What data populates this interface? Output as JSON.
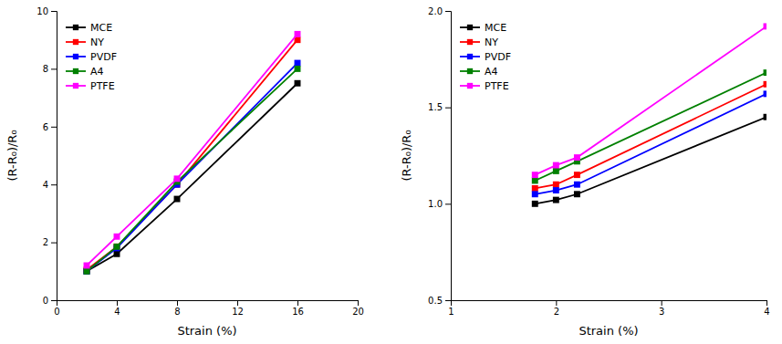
{
  "chart_data": [
    {
      "type": "line",
      "x": [
        2,
        4,
        8,
        16
      ],
      "series": [
        {
          "name": "MCE",
          "color": "#000000",
          "values": [
            1.0,
            1.6,
            3.5,
            7.5
          ]
        },
        {
          "name": "NY",
          "color": "#ff0000",
          "values": [
            1.05,
            1.85,
            4.0,
            9.0
          ]
        },
        {
          "name": "PVDF",
          "color": "#0000ff",
          "values": [
            1.0,
            1.8,
            4.0,
            8.2
          ]
        },
        {
          "name": "A4",
          "color": "#008000",
          "values": [
            1.0,
            1.85,
            4.1,
            8.0
          ]
        },
        {
          "name": "PTFE",
          "color": "#ff00ff",
          "values": [
            1.2,
            2.2,
            4.2,
            9.2
          ]
        }
      ],
      "xlim": [
        0,
        20
      ],
      "ylim": [
        0,
        10
      ],
      "xticks": [
        0,
        4,
        8,
        12,
        16,
        20
      ],
      "yticks": [
        0,
        2,
        4,
        6,
        8,
        10
      ],
      "xlabel": "Strain (%)",
      "ylabel": "(R-R₀)/R₀",
      "marker": "square",
      "legend": "upper-left",
      "grid": false
    },
    {
      "type": "line",
      "x": [
        1.8,
        2.0,
        2.2,
        4.0
      ],
      "series": [
        {
          "name": "MCE",
          "color": "#000000",
          "values": [
            1.0,
            1.02,
            1.05,
            1.45
          ]
        },
        {
          "name": "NY",
          "color": "#ff0000",
          "values": [
            1.08,
            1.1,
            1.15,
            1.62
          ]
        },
        {
          "name": "PVDF",
          "color": "#0000ff",
          "values": [
            1.05,
            1.07,
            1.1,
            1.57
          ]
        },
        {
          "name": "A4",
          "color": "#008000",
          "values": [
            1.12,
            1.17,
            1.22,
            1.68
          ]
        },
        {
          "name": "PTFE",
          "color": "#ff00ff",
          "values": [
            1.15,
            1.2,
            1.24,
            1.92
          ]
        }
      ],
      "xlim": [
        1,
        4
      ],
      "ylim": [
        0.5,
        2.0
      ],
      "xticks": [
        1,
        2,
        3,
        4
      ],
      "yticks": [
        0.5,
        {
          "value": 1.0,
          "label": "1.0"
        },
        1.5,
        {
          "value": 2.0,
          "label": "2.0"
        }
      ],
      "xlabel": "Strain (%)",
      "ylabel": "(R-R₀)/R₀",
      "marker": "square",
      "legend": "upper-left",
      "grid": false
    }
  ]
}
